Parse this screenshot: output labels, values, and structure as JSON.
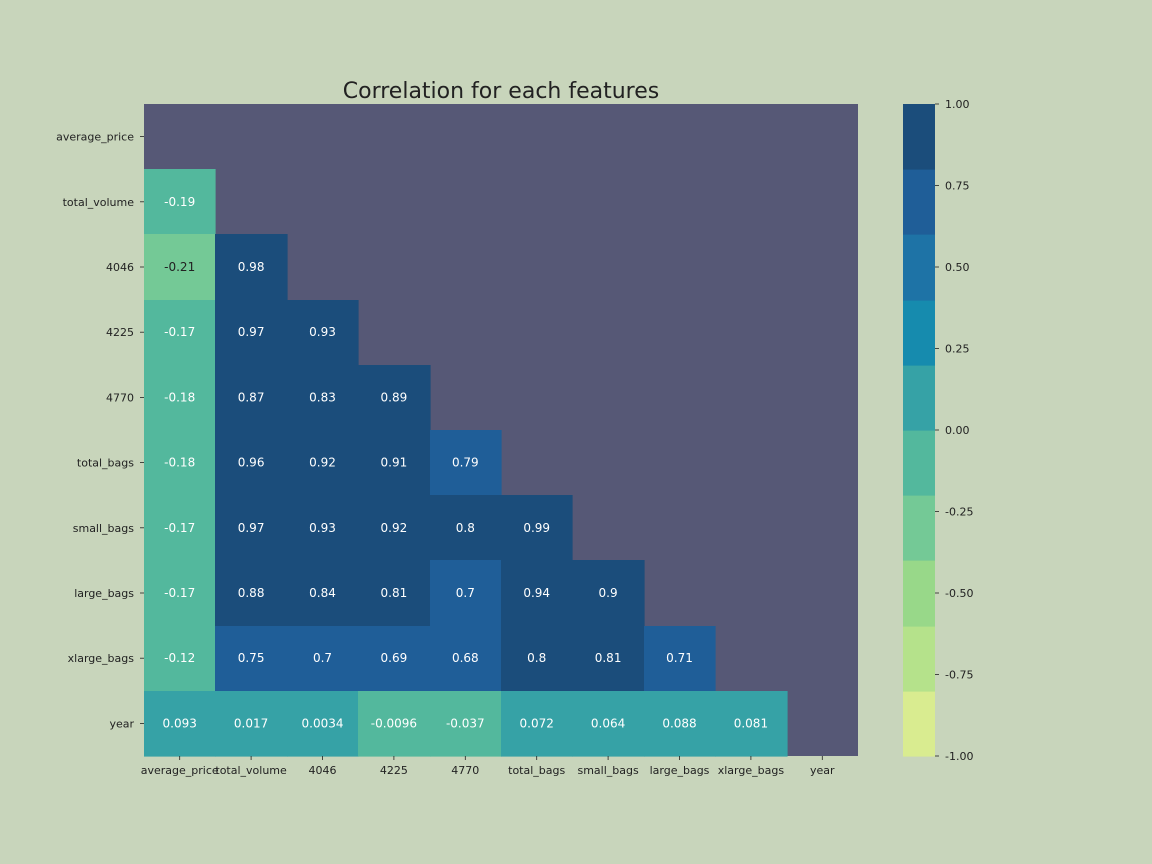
{
  "chart_data": {
    "type": "heatmap",
    "title": "Correlation for each features",
    "xlabels": [
      "average_price",
      "total_volume",
      "4046",
      "4225",
      "4770",
      "total_bags",
      "small_bags",
      "large_bags",
      "xlarge_bags",
      "year"
    ],
    "ylabels": [
      "average_price",
      "total_volume",
      "4046",
      "4225",
      "4770",
      "total_bags",
      "small_bags",
      "large_bags",
      "xlarge_bags",
      "year"
    ],
    "matrix": [
      [
        null,
        null,
        null,
        null,
        null,
        null,
        null,
        null,
        null,
        null
      ],
      [
        "-0.19",
        null,
        null,
        null,
        null,
        null,
        null,
        null,
        null,
        null
      ],
      [
        "-0.21",
        "0.98",
        null,
        null,
        null,
        null,
        null,
        null,
        null,
        null
      ],
      [
        "-0.17",
        "0.97",
        "0.93",
        null,
        null,
        null,
        null,
        null,
        null,
        null
      ],
      [
        "-0.18",
        "0.87",
        "0.83",
        "0.89",
        null,
        null,
        null,
        null,
        null,
        null
      ],
      [
        "-0.18",
        "0.96",
        "0.92",
        "0.91",
        "0.79",
        null,
        null,
        null,
        null,
        null
      ],
      [
        "-0.17",
        "0.97",
        "0.93",
        "0.92",
        "0.8",
        "0.99",
        null,
        null,
        null,
        null
      ],
      [
        "-0.17",
        "0.88",
        "0.84",
        "0.81",
        "0.7",
        "0.94",
        "0.9",
        null,
        null,
        null
      ],
      [
        "-0.12",
        "0.75",
        "0.7",
        "0.69",
        "0.68",
        "0.8",
        "0.81",
        "0.71",
        null,
        null
      ],
      [
        "0.093",
        "0.017",
        "0.0034",
        "-0.0096",
        "-0.037",
        "0.072",
        "0.064",
        "0.088",
        "0.081",
        null
      ]
    ],
    "vmin": -1.0,
    "vmax": 1.0,
    "colorbar_ticks": [
      "1.00",
      "0.75",
      "0.50",
      "0.25",
      "0.00",
      "-0.25",
      "-0.50",
      "-0.75",
      "-1.00"
    ],
    "colorbar_bins": 8,
    "mask": "upper-triangle-and-diagonal",
    "colors": {
      "background": "#c8d5bb",
      "mask": "#565876",
      "palette": [
        "#d9ec90",
        "#b5e28b",
        "#98d889",
        "#74c996",
        "#53b89d",
        "#36a2a6",
        "#168bae",
        "#1e73a6",
        "#1f5e98",
        "#1b4d7b"
      ]
    }
  }
}
